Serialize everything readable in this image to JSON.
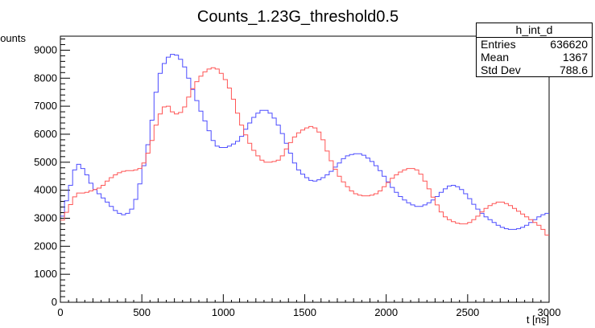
{
  "chart_data": {
    "type": "line",
    "title": "Counts_1.23G_threshold0.5",
    "xlabel": "t [ns]",
    "ylabel": "counts",
    "xlim": [
      0,
      3000
    ],
    "ylim": [
      0,
      9500
    ],
    "x_ticks": [
      "0",
      "500",
      "1000",
      "1500",
      "2000",
      "2500",
      "3000"
    ],
    "y_ticks": [
      "0",
      "1000",
      "2000",
      "3000",
      "4000",
      "5000",
      "6000",
      "7000",
      "8000",
      "9000"
    ],
    "grid": false,
    "legend": "none",
    "x": [
      0,
      100,
      150,
      200,
      250,
      300,
      350,
      400,
      450,
      500,
      550,
      600,
      650,
      700,
      750,
      800,
      850,
      900,
      950,
      1000,
      1050,
      1100,
      1150,
      1200,
      1250,
      1300,
      1350,
      1400,
      1450,
      1500,
      1550,
      1600,
      1650,
      1700,
      1750,
      1800,
      1850,
      1900,
      1950,
      2000,
      2050,
      2100,
      2150,
      2200,
      2250,
      2300,
      2350,
      2400,
      2450,
      2500,
      2550,
      2600,
      2650,
      2700,
      2750,
      2800,
      2850,
      2900,
      2950,
      3000
    ],
    "series": [
      {
        "color": "#4d4dff",
        "values": [
          2800,
          5000,
          4700,
          4100,
          3800,
          3500,
          3200,
          3100,
          3400,
          4500,
          6000,
          8000,
          8700,
          8900,
          8600,
          7800,
          7000,
          6300,
          5600,
          5500,
          5600,
          5800,
          6300,
          6700,
          6900,
          6700,
          6200,
          5500,
          4800,
          4500,
          4300,
          4400,
          4600,
          4900,
          5200,
          5300,
          5300,
          5100,
          4800,
          4400,
          4000,
          3700,
          3500,
          3400,
          3500,
          3700,
          4000,
          4200,
          4100,
          3800,
          3400,
          3100,
          2900,
          2700,
          2600,
          2600,
          2700,
          2900,
          3100,
          3200
        ]
      },
      {
        "color": "#ff5555",
        "values": [
          2800,
          3900,
          3900,
          4000,
          4100,
          4400,
          4600,
          4700,
          4700,
          4800,
          5500,
          6600,
          7100,
          6700,
          6800,
          7500,
          8000,
          8300,
          8400,
          8100,
          7500,
          6500,
          5800,
          5300,
          5000,
          5000,
          5100,
          5600,
          6000,
          6200,
          6300,
          6000,
          5200,
          4600,
          4200,
          3900,
          3800,
          3800,
          3900,
          4200,
          4500,
          4700,
          4800,
          4700,
          4200,
          3600,
          3100,
          2900,
          2800,
          2800,
          3000,
          3300,
          3500,
          3600,
          3500,
          3300,
          3100,
          2900,
          2700,
          2300
        ]
      }
    ]
  },
  "stats": {
    "title": "h_int_d",
    "rows": [
      {
        "label": "Entries",
        "value": "636620"
      },
      {
        "label": "Mean",
        "value": "1367"
      },
      {
        "label": "Std Dev",
        "value": "788.6"
      }
    ]
  }
}
